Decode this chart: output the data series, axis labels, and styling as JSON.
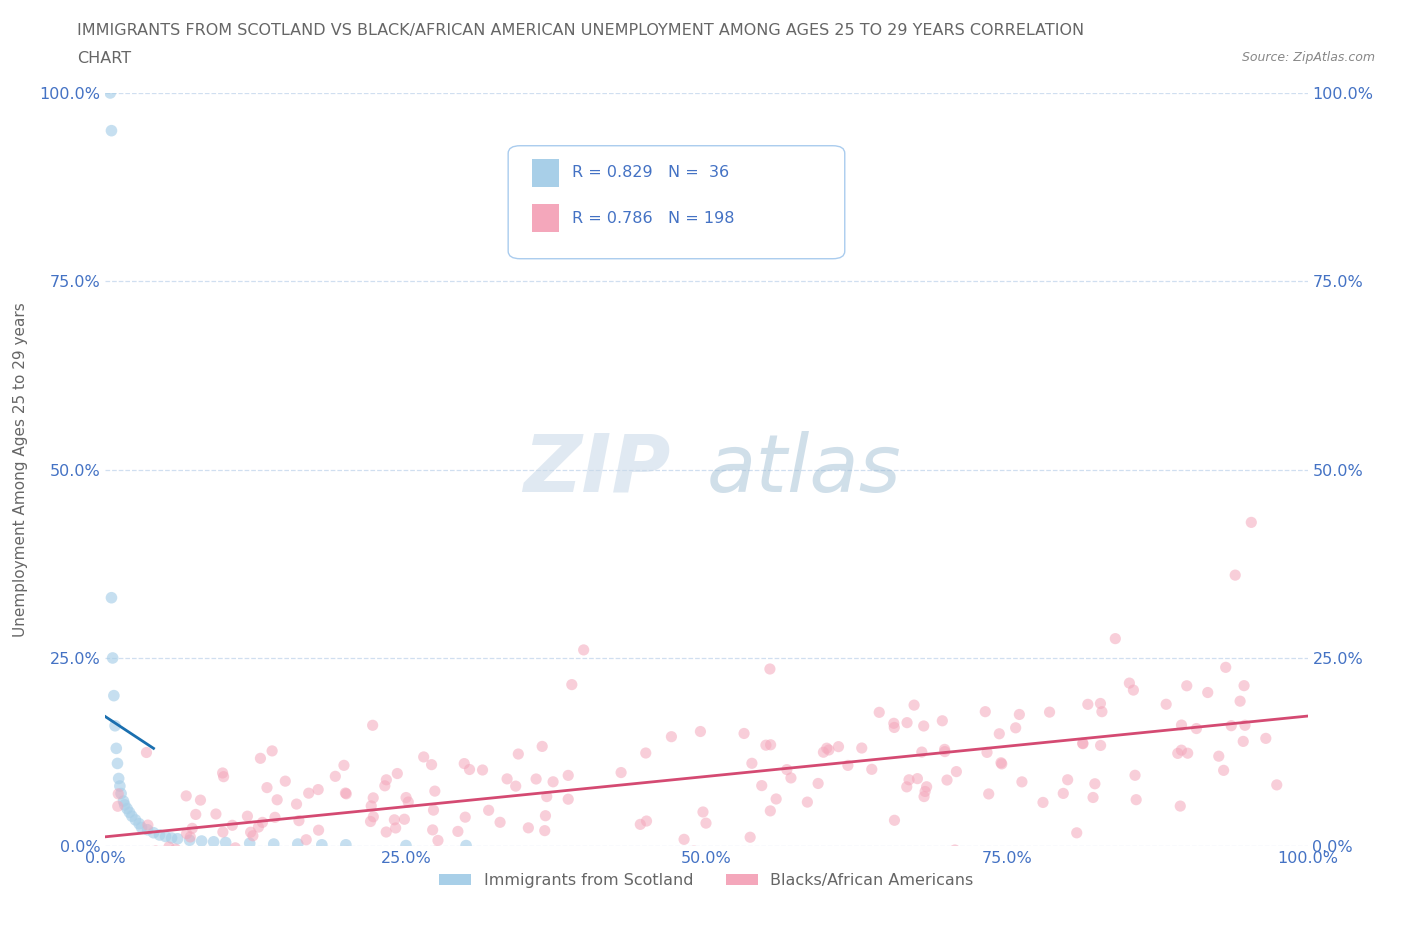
{
  "title_line1": "IMMIGRANTS FROM SCOTLAND VS BLACK/AFRICAN AMERICAN UNEMPLOYMENT AMONG AGES 25 TO 29 YEARS CORRELATION",
  "title_line2": "CHART",
  "source": "Source: ZipAtlas.com",
  "ylabel": "Unemployment Among Ages 25 to 29 years",
  "xlim": [
    0,
    1.0
  ],
  "ylim": [
    0,
    1.0
  ],
  "xticks": [
    0.0,
    0.25,
    0.5,
    0.75,
    1.0
  ],
  "yticks": [
    0.0,
    0.25,
    0.5,
    0.75,
    1.0
  ],
  "xticklabels": [
    "0.0%",
    "25.0%",
    "50.0%",
    "75.0%",
    "100.0%"
  ],
  "yticklabels": [
    "0.0%",
    "25.0%",
    "50.0%",
    "75.0%",
    "100.0%"
  ],
  "scotland_R": 0.829,
  "scotland_N": 36,
  "black_R": 0.786,
  "black_N": 198,
  "scotland_color": "#a8cfe8",
  "black_color": "#f4a7bb",
  "scotland_line_color": "#1a6faf",
  "black_line_color": "#d44a72",
  "watermark_zip": "ZIP",
  "watermark_atlas": "atlas",
  "background_color": "#ffffff",
  "title_color": "#666666",
  "tick_color": "#4472c4",
  "grid_color": "#d0dff0",
  "legend_border_color": "#aaccee",
  "source_color": "#888888"
}
